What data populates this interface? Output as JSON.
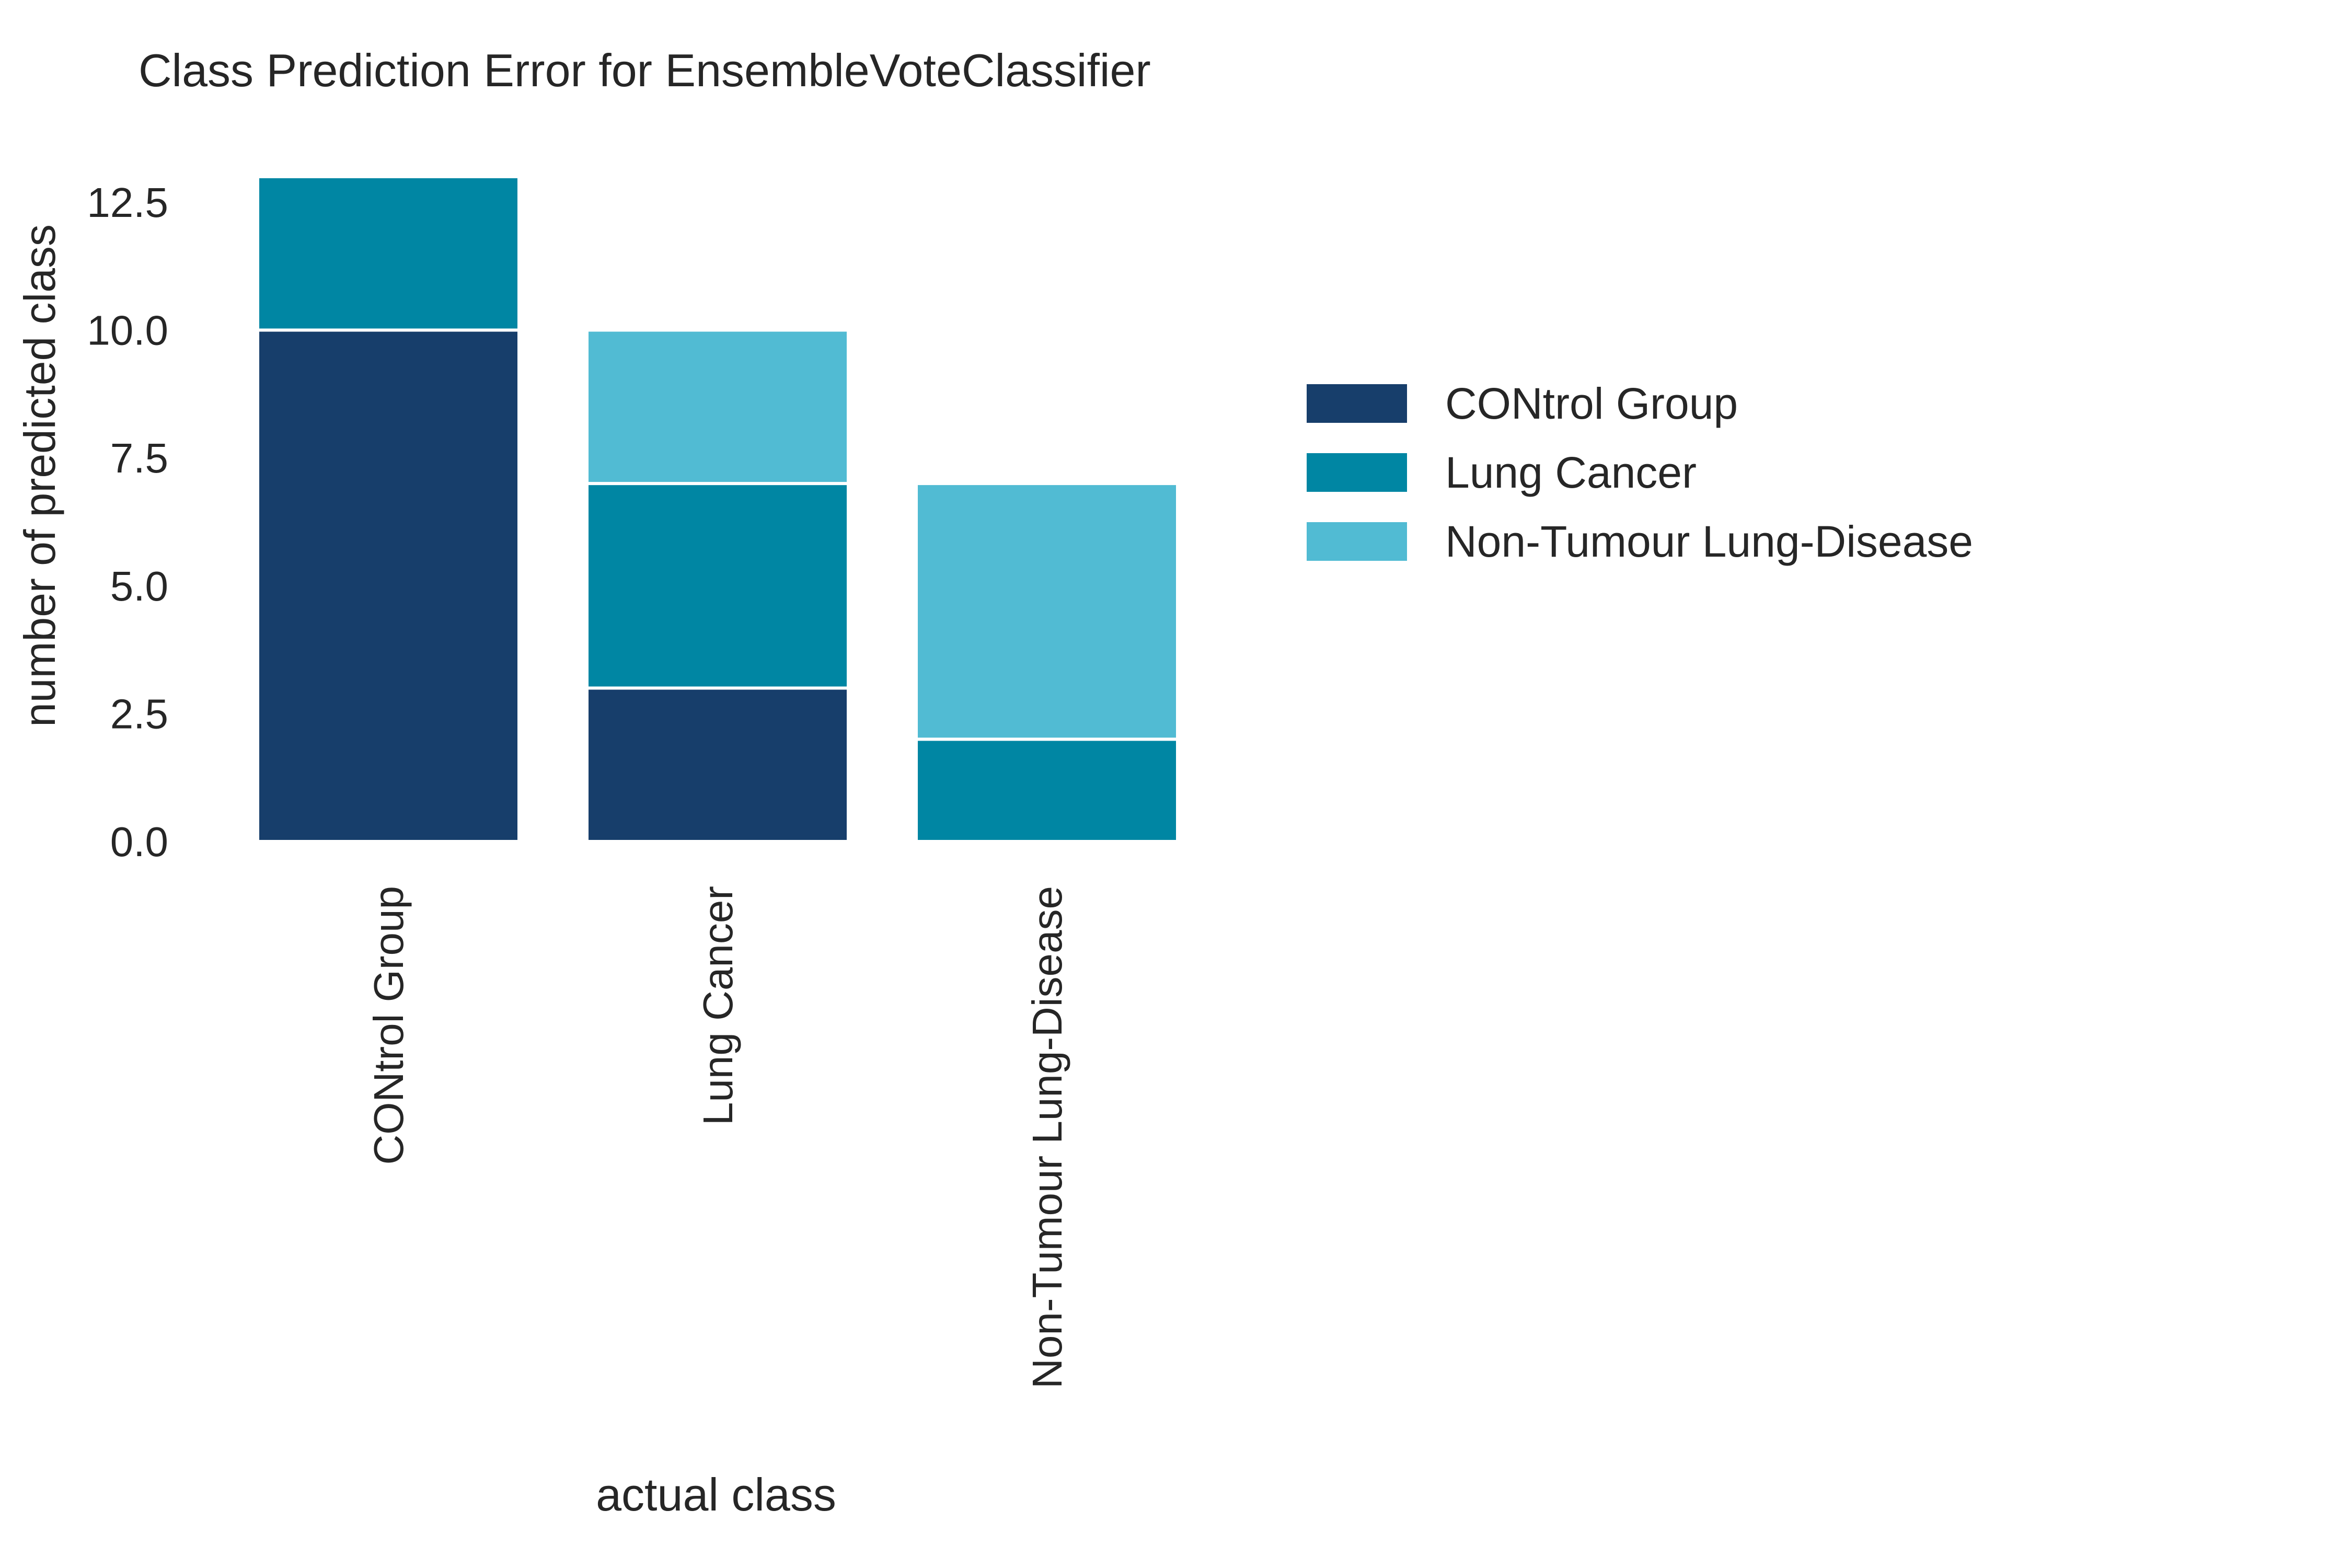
{
  "chart_data": {
    "type": "bar",
    "stacked": true,
    "title": "Class Prediction Error for EnsembleVoteClassifier",
    "xlabel": "actual class",
    "ylabel": "number of predicted class",
    "categories": [
      "CONtrol Group",
      "Lung Cancer",
      "Non-Tumour Lung-Disease"
    ],
    "series": [
      {
        "name": "CONtrol Group",
        "color": "#173e6b",
        "values": [
          10,
          3,
          0
        ]
      },
      {
        "name": "Lung Cancer",
        "color": "#0086a3",
        "values": [
          3,
          4,
          2
        ]
      },
      {
        "name": "Non-Tumour Lung-Disease",
        "color": "#51bbd3",
        "values": [
          0,
          3,
          5
        ]
      }
    ],
    "ylim": [
      0,
      13
    ],
    "yticks": [
      "0.0",
      "2.5",
      "5.0",
      "7.5",
      "10.0",
      "12.5"
    ],
    "grid": false,
    "legend": "right"
  }
}
